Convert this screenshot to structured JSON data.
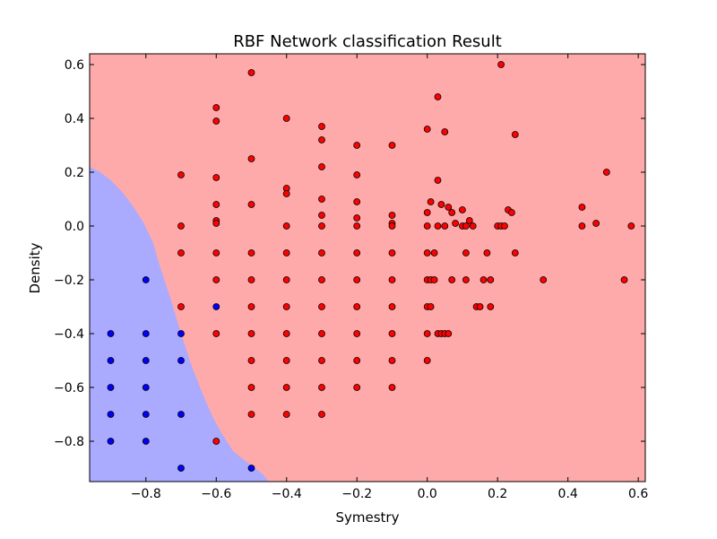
{
  "chart_data": {
    "type": "scatter",
    "title": "RBF Network classification Result",
    "xlabel": "Symestry",
    "ylabel": "Density",
    "xlim": [
      -0.96,
      0.62
    ],
    "ylim": [
      -0.95,
      0.64
    ],
    "x_ticks": [
      -0.8,
      -0.6,
      -0.4,
      -0.2,
      0.0,
      0.2,
      0.4,
      0.6
    ],
    "x_tick_labels": [
      "−0.8",
      "−0.6",
      "−0.4",
      "−0.2",
      "0.0",
      "0.2",
      "0.4",
      "0.6"
    ],
    "y_ticks": [
      -0.8,
      -0.6,
      -0.4,
      -0.2,
      0.0,
      0.2,
      0.4,
      0.6
    ],
    "y_tick_labels": [
      "−0.8",
      "−0.6",
      "−0.4",
      "−0.2",
      "0.0",
      "0.2",
      "0.4",
      "0.6"
    ],
    "grid": false,
    "legend": "none",
    "colors": {
      "red_region": "#ffaaaa",
      "blue_region": "#aaaaff",
      "red_point": "#ff0000",
      "blue_point": "#0000ff",
      "point_edge": "#000000"
    },
    "decision_boundary": [
      [
        -0.96,
        0.22
      ],
      [
        -0.93,
        0.2
      ],
      [
        -0.9,
        0.17
      ],
      [
        -0.87,
        0.13
      ],
      [
        -0.84,
        0.08
      ],
      [
        -0.81,
        0.02
      ],
      [
        -0.78,
        -0.06
      ],
      [
        -0.76,
        -0.15
      ],
      [
        -0.73,
        -0.27
      ],
      [
        -0.7,
        -0.4
      ],
      [
        -0.67,
        -0.52
      ],
      [
        -0.64,
        -0.62
      ],
      [
        -0.61,
        -0.71
      ],
      [
        -0.58,
        -0.78
      ],
      [
        -0.55,
        -0.84
      ],
      [
        -0.51,
        -0.88
      ],
      [
        -0.47,
        -0.92
      ],
      [
        -0.45,
        -0.95
      ]
    ],
    "series": [
      {
        "class": "red",
        "points": [
          [
            -0.7,
            0.19
          ],
          [
            -0.7,
            0.0
          ],
          [
            -0.7,
            -0.1
          ],
          [
            -0.7,
            -0.3
          ],
          [
            -0.6,
            0.44
          ],
          [
            -0.6,
            0.39
          ],
          [
            -0.6,
            0.18
          ],
          [
            -0.6,
            0.08
          ],
          [
            -0.6,
            0.02
          ],
          [
            -0.6,
            0.01
          ],
          [
            -0.6,
            -0.1
          ],
          [
            -0.6,
            -0.2
          ],
          [
            -0.6,
            -0.4
          ],
          [
            -0.6,
            -0.8
          ],
          [
            -0.5,
            0.57
          ],
          [
            -0.5,
            0.25
          ],
          [
            -0.5,
            0.08
          ],
          [
            -0.5,
            -0.1
          ],
          [
            -0.5,
            -0.2
          ],
          [
            -0.5,
            -0.3
          ],
          [
            -0.5,
            -0.4
          ],
          [
            -0.5,
            -0.5
          ],
          [
            -0.5,
            -0.6
          ],
          [
            -0.5,
            -0.7
          ],
          [
            -0.4,
            0.4
          ],
          [
            -0.4,
            0.14
          ],
          [
            -0.4,
            0.12
          ],
          [
            -0.4,
            0.0
          ],
          [
            -0.4,
            -0.1
          ],
          [
            -0.4,
            -0.2
          ],
          [
            -0.4,
            -0.3
          ],
          [
            -0.4,
            -0.4
          ],
          [
            -0.4,
            -0.5
          ],
          [
            -0.4,
            -0.6
          ],
          [
            -0.4,
            -0.7
          ],
          [
            -0.3,
            0.37
          ],
          [
            -0.3,
            0.32
          ],
          [
            -0.3,
            0.22
          ],
          [
            -0.3,
            0.1
          ],
          [
            -0.3,
            0.04
          ],
          [
            -0.3,
            0.0
          ],
          [
            -0.3,
            -0.1
          ],
          [
            -0.3,
            -0.2
          ],
          [
            -0.3,
            -0.3
          ],
          [
            -0.3,
            -0.4
          ],
          [
            -0.3,
            -0.5
          ],
          [
            -0.3,
            -0.6
          ],
          [
            -0.3,
            -0.7
          ],
          [
            -0.2,
            0.3
          ],
          [
            -0.2,
            0.19
          ],
          [
            -0.2,
            0.09
          ],
          [
            -0.2,
            0.03
          ],
          [
            -0.2,
            0.0
          ],
          [
            -0.2,
            -0.1
          ],
          [
            -0.2,
            -0.2
          ],
          [
            -0.2,
            -0.3
          ],
          [
            -0.2,
            -0.4
          ],
          [
            -0.2,
            -0.5
          ],
          [
            -0.2,
            -0.6
          ],
          [
            -0.1,
            0.3
          ],
          [
            -0.1,
            0.04
          ],
          [
            -0.1,
            0.01
          ],
          [
            -0.1,
            0.0
          ],
          [
            -0.1,
            -0.1
          ],
          [
            -0.1,
            -0.2
          ],
          [
            -0.1,
            -0.3
          ],
          [
            -0.1,
            -0.4
          ],
          [
            -0.1,
            -0.5
          ],
          [
            -0.1,
            -0.6
          ],
          [
            0.0,
            0.36
          ],
          [
            0.0,
            0.05
          ],
          [
            0.0,
            0.0
          ],
          [
            0.0,
            -0.1
          ],
          [
            0.0,
            -0.2
          ],
          [
            0.0,
            -0.3
          ],
          [
            0.0,
            -0.4
          ],
          [
            0.0,
            -0.5
          ],
          [
            0.01,
            0.09
          ],
          [
            0.01,
            -0.2
          ],
          [
            0.01,
            -0.3
          ],
          [
            0.02,
            -0.1
          ],
          [
            0.02,
            -0.2
          ],
          [
            0.03,
            0.48
          ],
          [
            0.03,
            0.17
          ],
          [
            0.03,
            0.0
          ],
          [
            0.03,
            -0.4
          ],
          [
            0.04,
            0.08
          ],
          [
            0.04,
            -0.4
          ],
          [
            0.05,
            0.35
          ],
          [
            0.05,
            0.0
          ],
          [
            0.05,
            -0.4
          ],
          [
            0.06,
            0.07
          ],
          [
            0.06,
            -0.4
          ],
          [
            0.07,
            0.05
          ],
          [
            0.07,
            -0.2
          ],
          [
            0.08,
            0.01
          ],
          [
            0.1,
            0.06
          ],
          [
            0.1,
            0.0
          ],
          [
            0.11,
            0.0
          ],
          [
            0.11,
            -0.1
          ],
          [
            0.11,
            -0.2
          ],
          [
            0.12,
            0.02
          ],
          [
            0.13,
            0.0
          ],
          [
            0.14,
            -0.3
          ],
          [
            0.15,
            -0.3
          ],
          [
            0.16,
            -0.2
          ],
          [
            0.17,
            -0.1
          ],
          [
            0.18,
            -0.2
          ],
          [
            0.18,
            -0.3
          ],
          [
            0.2,
            0.0
          ],
          [
            0.21,
            0.6
          ],
          [
            0.21,
            0.0
          ],
          [
            0.22,
            0.0
          ],
          [
            0.23,
            0.06
          ],
          [
            0.24,
            0.05
          ],
          [
            0.25,
            0.34
          ],
          [
            0.25,
            -0.1
          ],
          [
            0.33,
            -0.2
          ],
          [
            0.44,
            0.07
          ],
          [
            0.44,
            0.0
          ],
          [
            0.48,
            0.01
          ],
          [
            0.51,
            0.2
          ],
          [
            0.56,
            -0.2
          ],
          [
            0.58,
            0.0
          ]
        ]
      },
      {
        "class": "blue",
        "points": [
          [
            -0.9,
            -0.4
          ],
          [
            -0.9,
            -0.5
          ],
          [
            -0.9,
            -0.6
          ],
          [
            -0.9,
            -0.7
          ],
          [
            -0.9,
            -0.8
          ],
          [
            -0.8,
            -0.2
          ],
          [
            -0.8,
            -0.4
          ],
          [
            -0.8,
            -0.5
          ],
          [
            -0.8,
            -0.6
          ],
          [
            -0.8,
            -0.7
          ],
          [
            -0.8,
            -0.8
          ],
          [
            -0.7,
            -0.4
          ],
          [
            -0.7,
            -0.5
          ],
          [
            -0.7,
            -0.7
          ],
          [
            -0.7,
            -0.9
          ],
          [
            -0.6,
            -0.3
          ],
          [
            -0.5,
            -0.9
          ]
        ]
      }
    ]
  }
}
